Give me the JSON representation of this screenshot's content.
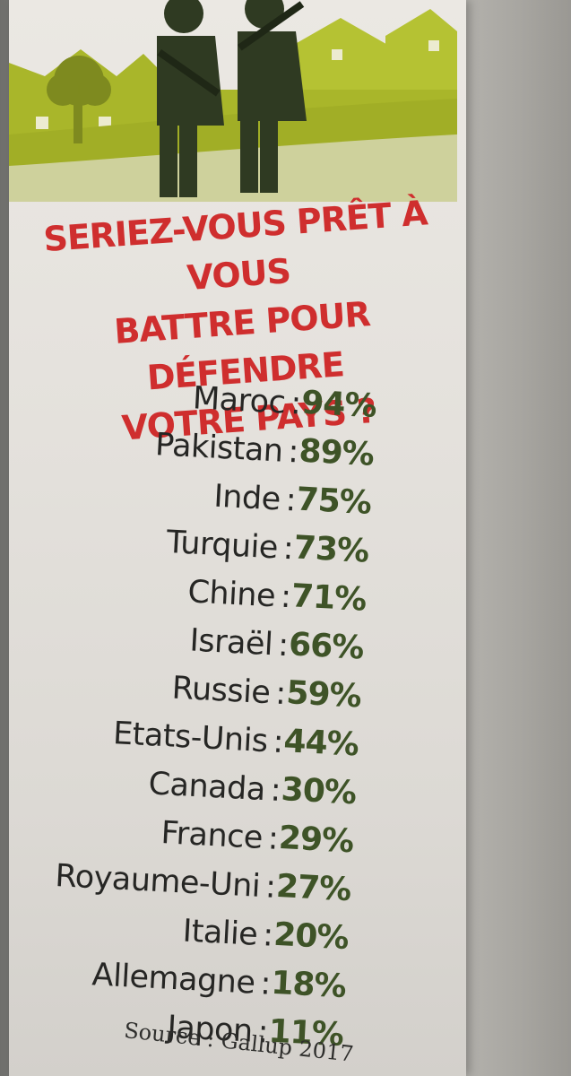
{
  "question": {
    "line1": "SERIEZ-VOUS PRÊT À VOUS",
    "line2": "BATTRE POUR DÉFENDRE",
    "line3": "VOTRE PAYS ?"
  },
  "colon": ":",
  "results": [
    {
      "country": "Maroc",
      "percent": "94%"
    },
    {
      "country": "Pakistan",
      "percent": "89%"
    },
    {
      "country": "Inde",
      "percent": "75%"
    },
    {
      "country": "Turquie",
      "percent": "73%"
    },
    {
      "country": "Chine",
      "percent": "71%"
    },
    {
      "country": "Israël",
      "percent": "66%"
    },
    {
      "country": "Russie",
      "percent": "59%"
    },
    {
      "country": "Etats-Unis",
      "percent": "44%"
    },
    {
      "country": "Canada",
      "percent": "30%"
    },
    {
      "country": "France",
      "percent": "29%"
    },
    {
      "country": "Royaume-Uni",
      "percent": "27%"
    },
    {
      "country": "Italie",
      "percent": "20%"
    },
    {
      "country": "Allemagne",
      "percent": "18%"
    },
    {
      "country": "Japon",
      "percent": "11%"
    }
  ],
  "source": "Source : Gallup 2017",
  "colors": {
    "title_red": "#cf2e2e",
    "percent_green": "#3e5327",
    "illustration_lime": "#a9b62a",
    "illustration_dark": "#2f3a22"
  },
  "illustration_icons": [
    "house-icon",
    "tree-icon",
    "soldier-icon"
  ]
}
